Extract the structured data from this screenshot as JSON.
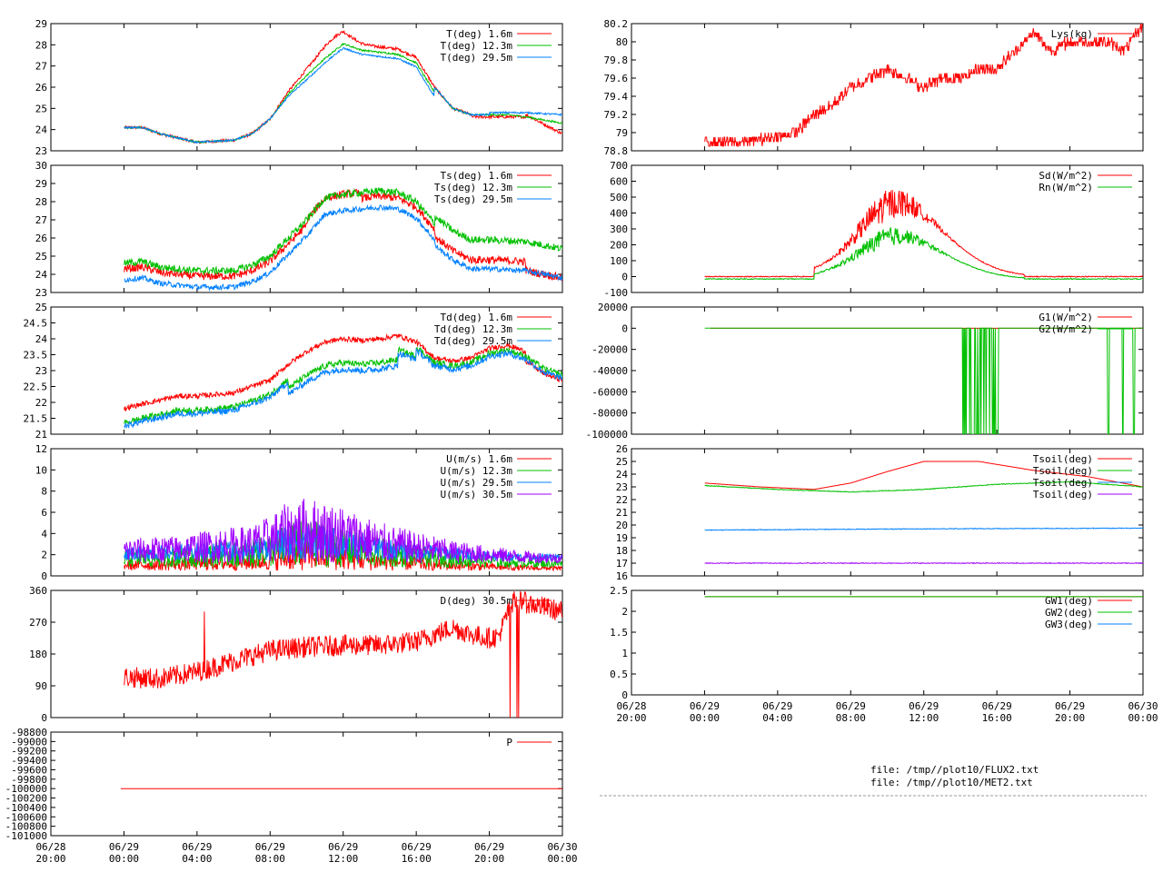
{
  "chart_data": [
    {
      "type": "line",
      "id": "T",
      "ylim": [
        23,
        29
      ],
      "yticks": [
        23,
        24,
        25,
        26,
        27,
        28,
        29
      ],
      "series": [
        {
          "name": "T(deg)  1.6m",
          "color": "#ff0000",
          "shape": "t16"
        },
        {
          "name": "T(deg) 12.3m",
          "color": "#00c000",
          "shape": "t12"
        },
        {
          "name": "T(deg) 29.5m",
          "color": "#0080ff",
          "shape": "t29"
        }
      ]
    },
    {
      "type": "line",
      "id": "Ts",
      "ylim": [
        23,
        30
      ],
      "yticks": [
        23,
        24,
        25,
        26,
        27,
        28,
        29,
        30
      ],
      "series": [
        {
          "name": "Ts(deg)  1.6m",
          "color": "#ff0000",
          "shape": "ts16"
        },
        {
          "name": "Ts(deg) 12.3m",
          "color": "#00c000",
          "shape": "ts12"
        },
        {
          "name": "Ts(deg) 29.5m",
          "color": "#0080ff",
          "shape": "ts29"
        }
      ]
    },
    {
      "type": "line",
      "id": "Td",
      "ylim": [
        21,
        25
      ],
      "yticks": [
        21,
        21.5,
        22,
        22.5,
        23,
        23.5,
        24,
        24.5,
        25
      ],
      "series": [
        {
          "name": "Td(deg)  1.6m",
          "color": "#ff0000",
          "shape": "td16"
        },
        {
          "name": "Td(deg) 12.3m",
          "color": "#00c000",
          "shape": "td12"
        },
        {
          "name": "Td(deg) 29.5m",
          "color": "#0080ff",
          "shape": "td29"
        }
      ]
    },
    {
      "type": "line",
      "id": "U",
      "ylim": [
        0,
        12
      ],
      "yticks": [
        0,
        2,
        4,
        6,
        8,
        10,
        12
      ],
      "series": [
        {
          "name": "U(m/s)  1.6m",
          "color": "#ff0000",
          "shape": "u16"
        },
        {
          "name": "U(m/s) 12.3m",
          "color": "#00c000",
          "shape": "u12"
        },
        {
          "name": "U(m/s) 29.5m",
          "color": "#0080ff",
          "shape": "u29"
        },
        {
          "name": "U(m/s) 30.5m",
          "color": "#a000ff",
          "shape": "u30"
        }
      ]
    },
    {
      "type": "line",
      "id": "D",
      "ylim": [
        0,
        360
      ],
      "yticks": [
        0,
        90,
        180,
        270,
        360
      ],
      "series": [
        {
          "name": "D(deg)  30.5m",
          "color": "#ff0000",
          "shape": "dir"
        }
      ]
    },
    {
      "type": "line",
      "id": "P",
      "ylim": [
        -101000,
        -98800
      ],
      "yticks": [
        -101000,
        -100800,
        -100600,
        -100400,
        -100200,
        -100000,
        -99800,
        -99600,
        -99400,
        -99200,
        -99000,
        -98800
      ],
      "series": [
        {
          "name": "P",
          "color": "#ff0000",
          "shape": "p"
        }
      ]
    },
    {
      "type": "line",
      "id": "Lys",
      "ylim": [
        78.8,
        80.2
      ],
      "yticks": [
        78.8,
        79,
        79.2,
        79.4,
        79.6,
        79.8,
        80,
        80.2
      ],
      "series": [
        {
          "name": "Lys(kg)",
          "color": "#ff0000",
          "shape": "lys"
        }
      ]
    },
    {
      "type": "line",
      "id": "Rad",
      "ylim": [
        -100,
        700
      ],
      "yticks": [
        -100,
        0,
        100,
        200,
        300,
        400,
        500,
        600,
        700
      ],
      "series": [
        {
          "name": "Sd(W/m^2)",
          "color": "#ff0000",
          "shape": "sd"
        },
        {
          "name": "Rn(W/m^2)",
          "color": "#00c000",
          "shape": "rn"
        }
      ]
    },
    {
      "type": "line",
      "id": "G",
      "ylim": [
        -100000,
        20000
      ],
      "yticks": [
        -100000,
        -80000,
        -60000,
        -40000,
        -20000,
        0,
        20000
      ],
      "series": [
        {
          "name": "G1(W/m^2)",
          "color": "#ff0000",
          "shape": "g1"
        },
        {
          "name": "G2(W/m^2)",
          "color": "#00c000",
          "shape": "g2"
        }
      ]
    },
    {
      "type": "line",
      "id": "Tsoil",
      "ylim": [
        16,
        26
      ],
      "yticks": [
        16,
        17,
        18,
        19,
        20,
        21,
        22,
        23,
        24,
        25,
        26
      ],
      "series": [
        {
          "name": "Tsoil(deg)",
          "color": "#ff0000",
          "shape": "tsoil1"
        },
        {
          "name": "Tsoil(deg)",
          "color": "#00c000",
          "shape": "tsoil2"
        },
        {
          "name": "Tsoil(deg)",
          "color": "#0080ff",
          "shape": "tsoil3"
        },
        {
          "name": "Tsoil(deg)",
          "color": "#a000ff",
          "shape": "tsoil4"
        }
      ]
    },
    {
      "type": "line",
      "id": "GW",
      "ylim": [
        0,
        2.5
      ],
      "yticks": [
        0,
        0.5,
        1,
        1.5,
        2,
        2.5
      ],
      "series": [
        {
          "name": "GW1(deg)",
          "color": "#ff0000",
          "shape": "gw"
        },
        {
          "name": "GW2(deg)",
          "color": "#00c000",
          "shape": "gw"
        },
        {
          "name": "GW3(deg)",
          "color": "#0080ff",
          "shape": "none"
        }
      ]
    }
  ],
  "xaxis": {
    "range_hours": [
      -4,
      24
    ],
    "ticks": [
      {
        "h": -4,
        "date": "06/28",
        "time": "20:00"
      },
      {
        "h": 0,
        "date": "06/29",
        "time": "00:00"
      },
      {
        "h": 4,
        "date": "06/29",
        "time": "04:00"
      },
      {
        "h": 8,
        "date": "06/29",
        "time": "08:00"
      },
      {
        "h": 12,
        "date": "06/29",
        "time": "12:00"
      },
      {
        "h": 16,
        "date": "06/29",
        "time": "16:00"
      },
      {
        "h": 20,
        "date": "06/29",
        "time": "20:00"
      },
      {
        "h": 24,
        "date": "06/30",
        "time": "00:00"
      }
    ]
  },
  "files": {
    "line1": "file: /tmp//plot10/FLUX2.txt",
    "line2": "file: /tmp//plot10/MET2.txt"
  }
}
